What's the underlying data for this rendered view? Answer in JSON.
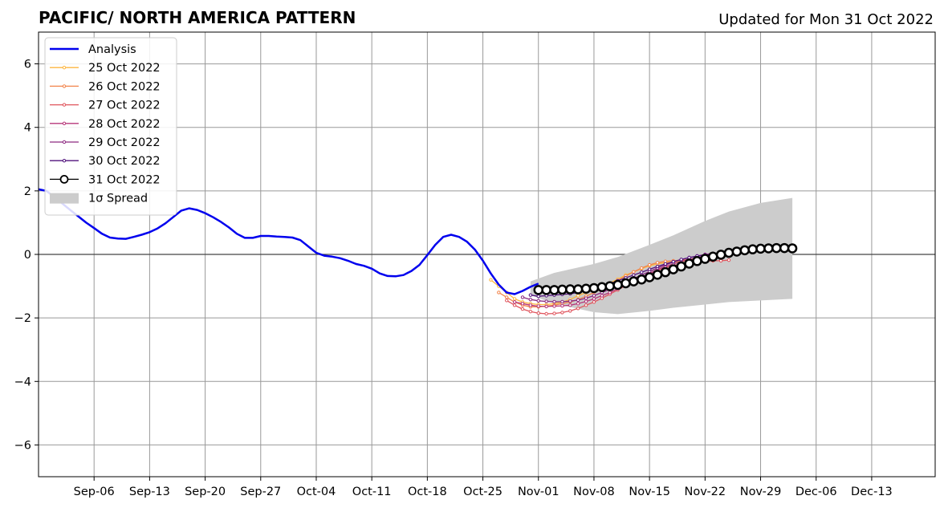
{
  "chart_data": {
    "type": "line",
    "title": "PACIFIC/ NORTH AMERICA PATTERN",
    "subtitle": "Updated for Mon 31 Oct 2022",
    "xlabel": "",
    "ylabel": "",
    "xlim": [
      "2022-08-30",
      "2022-12-21"
    ],
    "ylim": [
      -7,
      7
    ],
    "grid": true,
    "legend_position": "upper-left",
    "x_ticks": [
      {
        "date": "2022-09-06",
        "label": "Sep-06"
      },
      {
        "date": "2022-09-13",
        "label": "Sep-13"
      },
      {
        "date": "2022-09-20",
        "label": "Sep-20"
      },
      {
        "date": "2022-09-27",
        "label": "Sep-27"
      },
      {
        "date": "2022-10-04",
        "label": "Oct-04"
      },
      {
        "date": "2022-10-11",
        "label": "Oct-11"
      },
      {
        "date": "2022-10-18",
        "label": "Oct-18"
      },
      {
        "date": "2022-10-25",
        "label": "Oct-25"
      },
      {
        "date": "2022-11-01",
        "label": "Nov-01"
      },
      {
        "date": "2022-11-08",
        "label": "Nov-08"
      },
      {
        "date": "2022-11-15",
        "label": "Nov-15"
      },
      {
        "date": "2022-11-22",
        "label": "Nov-22"
      },
      {
        "date": "2022-11-29",
        "label": "Nov-29"
      },
      {
        "date": "2022-12-06",
        "label": "Dec-06"
      },
      {
        "date": "2022-12-13",
        "label": "Dec-13"
      }
    ],
    "y_ticks": [
      {
        "value": 6,
        "label": "6"
      },
      {
        "value": 4,
        "label": "4"
      },
      {
        "value": 2,
        "label": "2"
      },
      {
        "value": 0,
        "label": "0"
      },
      {
        "value": -2,
        "label": "−2"
      },
      {
        "value": -4,
        "label": "−4"
      },
      {
        "value": -6,
        "label": "−6"
      }
    ],
    "legend": [
      {
        "label": "Analysis",
        "color": "#0000ee",
        "style": "line"
      },
      {
        "label": "25 Oct 2022",
        "color": "#fdb641",
        "style": "line-dot"
      },
      {
        "label": "26 Oct 2022",
        "color": "#f2844b",
        "style": "line-dot"
      },
      {
        "label": "27 Oct 2022",
        "color": "#e0555d",
        "style": "line-dot"
      },
      {
        "label": "28 Oct 2022",
        "color": "#b73779",
        "style": "line-dot"
      },
      {
        "label": "29 Oct 2022",
        "color": "#8c2981",
        "style": "line-dot"
      },
      {
        "label": "30 Oct 2022",
        "color": "#51127c",
        "style": "line-dot"
      },
      {
        "label": "31 Oct 2022",
        "color": "#000000",
        "style": "line-circle"
      },
      {
        "label": "1σ Spread",
        "color": "#cccccc",
        "style": "patch"
      }
    ],
    "analysis": {
      "name": "Analysis",
      "color": "#0000ee",
      "points": [
        [
          "2022-08-30",
          2.05
        ],
        [
          "2022-08-31",
          2.0
        ],
        [
          "2022-09-01",
          1.8
        ],
        [
          "2022-09-02",
          1.6
        ],
        [
          "2022-09-03",
          1.4
        ],
        [
          "2022-09-04",
          1.2
        ],
        [
          "2022-09-05",
          1.0
        ],
        [
          "2022-09-06",
          0.83
        ],
        [
          "2022-09-07",
          0.65
        ],
        [
          "2022-09-08",
          0.53
        ],
        [
          "2022-09-09",
          0.5
        ],
        [
          "2022-09-10",
          0.49
        ],
        [
          "2022-09-11",
          0.55
        ],
        [
          "2022-09-12",
          0.62
        ],
        [
          "2022-09-13",
          0.7
        ],
        [
          "2022-09-14",
          0.82
        ],
        [
          "2022-09-15",
          0.98
        ],
        [
          "2022-09-16",
          1.18
        ],
        [
          "2022-09-17",
          1.38
        ],
        [
          "2022-09-18",
          1.45
        ],
        [
          "2022-09-19",
          1.4
        ],
        [
          "2022-09-20",
          1.3
        ],
        [
          "2022-09-21",
          1.17
        ],
        [
          "2022-09-22",
          1.02
        ],
        [
          "2022-09-23",
          0.85
        ],
        [
          "2022-09-24",
          0.65
        ],
        [
          "2022-09-25",
          0.52
        ],
        [
          "2022-09-26",
          0.52
        ],
        [
          "2022-09-27",
          0.58
        ],
        [
          "2022-09-28",
          0.58
        ],
        [
          "2022-09-29",
          0.56
        ],
        [
          "2022-09-30",
          0.55
        ],
        [
          "2022-10-01",
          0.53
        ],
        [
          "2022-10-02",
          0.45
        ],
        [
          "2022-10-03",
          0.25
        ],
        [
          "2022-10-04",
          0.05
        ],
        [
          "2022-10-05",
          -0.04
        ],
        [
          "2022-10-06",
          -0.07
        ],
        [
          "2022-10-07",
          -0.12
        ],
        [
          "2022-10-08",
          -0.2
        ],
        [
          "2022-10-09",
          -0.3
        ],
        [
          "2022-10-10",
          -0.36
        ],
        [
          "2022-10-11",
          -0.45
        ],
        [
          "2022-10-12",
          -0.6
        ],
        [
          "2022-10-13",
          -0.68
        ],
        [
          "2022-10-14",
          -0.69
        ],
        [
          "2022-10-15",
          -0.65
        ],
        [
          "2022-10-16",
          -0.52
        ],
        [
          "2022-10-17",
          -0.33
        ],
        [
          "2022-10-18",
          -0.02
        ],
        [
          "2022-10-19",
          0.3
        ],
        [
          "2022-10-20",
          0.55
        ],
        [
          "2022-10-21",
          0.62
        ],
        [
          "2022-10-22",
          0.55
        ],
        [
          "2022-10-23",
          0.4
        ],
        [
          "2022-10-24",
          0.15
        ],
        [
          "2022-10-25",
          -0.2
        ],
        [
          "2022-10-26",
          -0.6
        ],
        [
          "2022-10-27",
          -0.95
        ],
        [
          "2022-10-28",
          -1.2
        ],
        [
          "2022-10-29",
          -1.25
        ],
        [
          "2022-10-30",
          -1.15
        ],
        [
          "2022-10-31",
          -1.02
        ],
        [
          "2022-11-01",
          -0.92
        ]
      ]
    },
    "forecasts": [
      {
        "name": "25 Oct 2022",
        "color": "#fdb641",
        "start": "2022-10-26",
        "values": [
          -0.8,
          -1.0,
          -1.2,
          -1.4,
          -1.5,
          -1.55,
          -1.58,
          -1.58,
          -1.55,
          -1.5,
          -1.42,
          -1.3,
          -1.2,
          -1.1,
          -1.0,
          -0.9,
          -0.78,
          -0.65,
          -0.55,
          -0.45,
          -0.36,
          -0.3,
          -0.26,
          -0.24,
          -0.22,
          -0.2,
          -0.2,
          -0.2,
          -0.18
        ]
      },
      {
        "name": "26 Oct 2022",
        "color": "#f2844b",
        "start": "2022-10-27",
        "values": [
          -1.2,
          -1.35,
          -1.5,
          -1.6,
          -1.65,
          -1.65,
          -1.63,
          -1.6,
          -1.55,
          -1.5,
          -1.42,
          -1.32,
          -1.2,
          -1.08,
          -0.95,
          -0.82,
          -0.68,
          -0.55,
          -0.43,
          -0.33,
          -0.26,
          -0.22,
          -0.2,
          -0.18,
          -0.17,
          -0.17,
          -0.17,
          -0.15
        ]
      },
      {
        "name": "27 Oct 2022",
        "color": "#e0555d",
        "start": "2022-10-28",
        "values": [
          -1.45,
          -1.6,
          -1.72,
          -1.8,
          -1.85,
          -1.87,
          -1.86,
          -1.83,
          -1.78,
          -1.7,
          -1.6,
          -1.5,
          -1.38,
          -1.25,
          -1.12,
          -0.98,
          -0.85,
          -0.72,
          -0.6,
          -0.5,
          -0.42,
          -0.35,
          -0.3,
          -0.27,
          -0.25,
          -0.22,
          -0.2,
          -0.2,
          -0.18
        ]
      },
      {
        "name": "28 Oct 2022",
        "color": "#b73779",
        "start": "2022-10-29",
        "values": [
          -1.5,
          -1.55,
          -1.6,
          -1.63,
          -1.64,
          -1.63,
          -1.62,
          -1.6,
          -1.55,
          -1.48,
          -1.4,
          -1.3,
          -1.2,
          -1.08,
          -0.96,
          -0.84,
          -0.72,
          -0.6,
          -0.48,
          -0.38,
          -0.3,
          -0.22,
          -0.16,
          -0.1,
          -0.05,
          0.0,
          0.03,
          0.05
        ]
      },
      {
        "name": "29 Oct 2022",
        "color": "#8c2981",
        "start": "2022-10-30",
        "values": [
          -1.35,
          -1.42,
          -1.46,
          -1.48,
          -1.49,
          -1.49,
          -1.47,
          -1.44,
          -1.38,
          -1.3,
          -1.2,
          -1.1,
          -0.98,
          -0.87,
          -0.76,
          -0.65,
          -0.54,
          -0.43,
          -0.33,
          -0.24,
          -0.17,
          -0.1,
          -0.05,
          0.0,
          0.03,
          0.05,
          0.05
        ]
      },
      {
        "name": "30 Oct 2022",
        "color": "#51127c",
        "start": "2022-10-31",
        "values": [
          -1.28,
          -1.32,
          -1.3,
          -1.28,
          -1.26,
          -1.24,
          -1.2,
          -1.15,
          -1.08,
          -1.0,
          -0.92,
          -0.83,
          -0.74,
          -0.65,
          -0.56,
          -0.47,
          -0.38,
          -0.3,
          -0.23,
          -0.16,
          -0.1,
          -0.05,
          -0.02,
          0.0,
          0.0,
          0.02
        ]
      },
      {
        "name": "31 Oct 2022",
        "color": "#000000",
        "start": "2022-11-01",
        "values": [
          -1.12,
          -1.12,
          -1.12,
          -1.11,
          -1.1,
          -1.1,
          -1.08,
          -1.06,
          -1.03,
          -1.0,
          -0.96,
          -0.91,
          -0.85,
          -0.79,
          -0.72,
          -0.64,
          -0.56,
          -0.47,
          -0.38,
          -0.29,
          -0.21,
          -0.14,
          -0.07,
          -0.01,
          0.05,
          0.09,
          0.13,
          0.16,
          0.18,
          0.19,
          0.2,
          0.2,
          0.19
        ]
      }
    ],
    "spread": {
      "name": "1σ Spread",
      "color": "#cccccc",
      "points": [
        [
          "2022-10-31",
          -0.85,
          -1.28
        ],
        [
          "2022-11-03",
          -0.58,
          -1.55
        ],
        [
          "2022-11-08",
          -0.3,
          -1.82
        ],
        [
          "2022-11-11",
          -0.08,
          -1.88
        ],
        [
          "2022-11-15",
          0.3,
          -1.78
        ],
        [
          "2022-11-18",
          0.6,
          -1.68
        ],
        [
          "2022-11-22",
          1.05,
          -1.58
        ],
        [
          "2022-11-25",
          1.35,
          -1.5
        ],
        [
          "2022-11-29",
          1.62,
          -1.45
        ],
        [
          "2022-12-03",
          1.78,
          -1.4
        ]
      ]
    }
  }
}
